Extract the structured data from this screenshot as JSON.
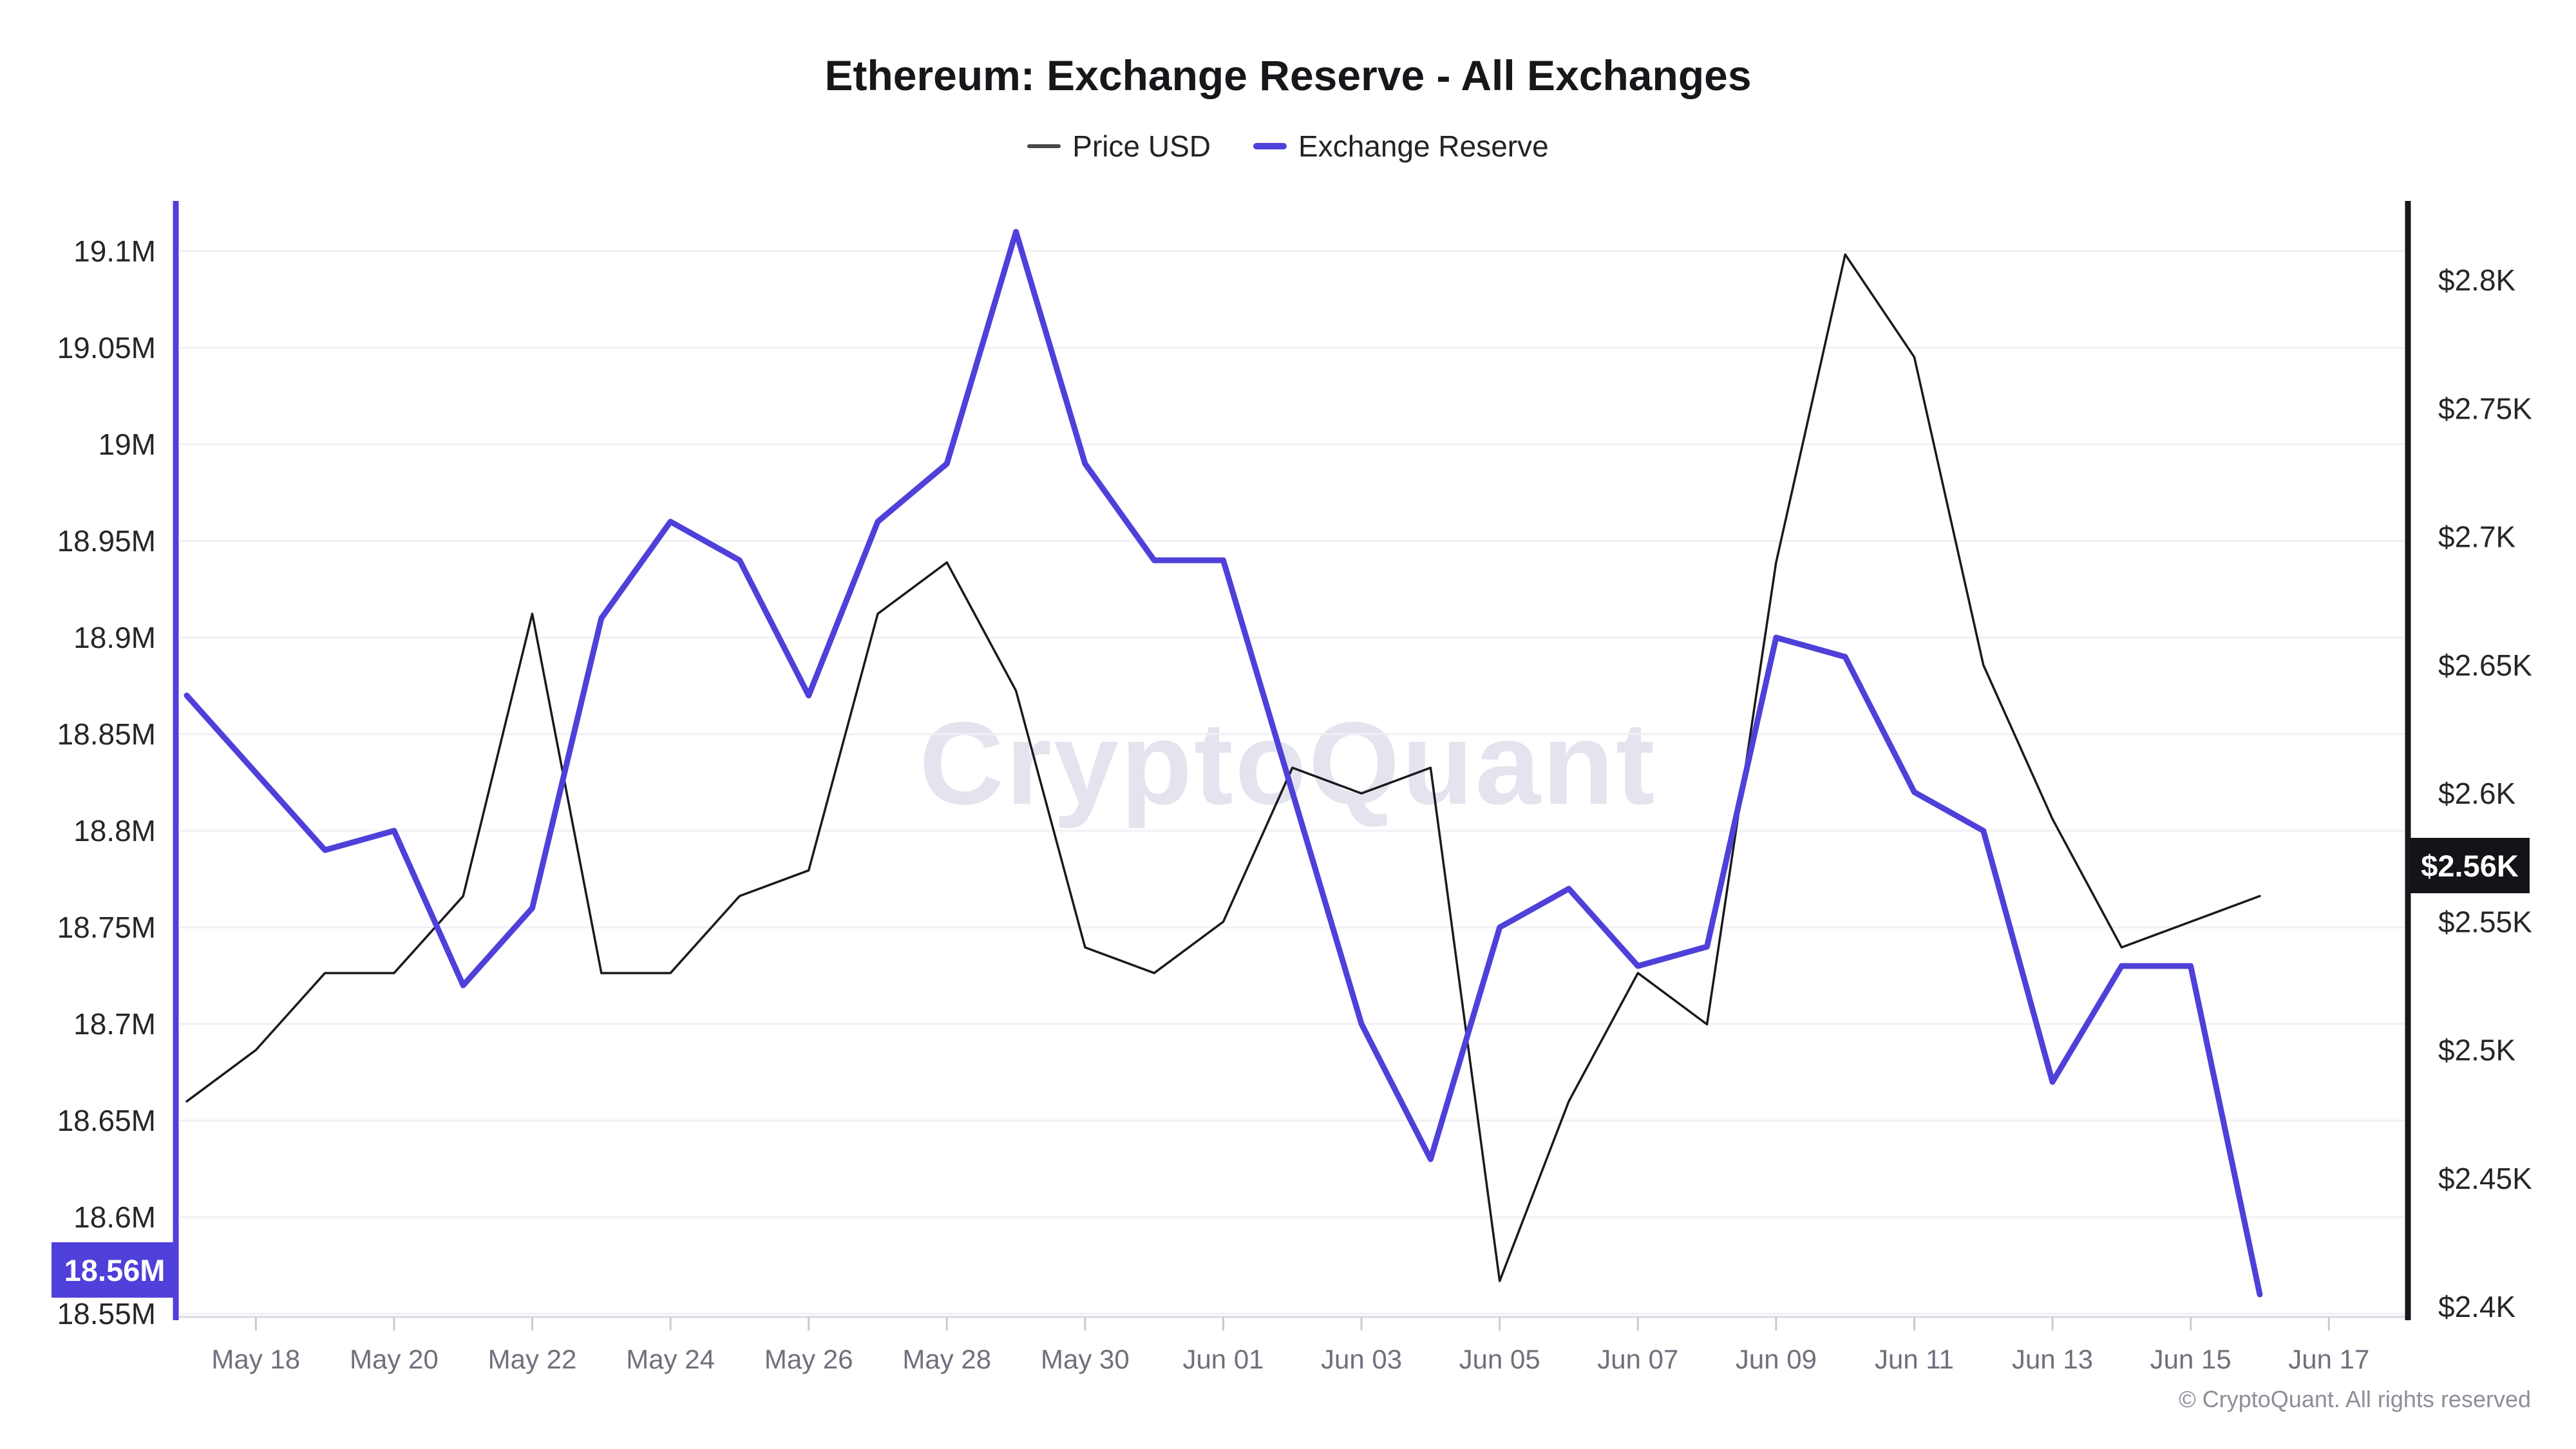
{
  "title": "Ethereum: Exchange Reserve - All Exchanges",
  "legend": {
    "price_label": "Price USD",
    "reserve_label": "Exchange Reserve"
  },
  "watermark": {
    "text": "CryptoQuant",
    "color": "#e3e4ee"
  },
  "footer": "© CryptoQuant. All rights reserved",
  "badges": {
    "reserve": {
      "text": "18.56M",
      "bg": "#4f40d9",
      "fg": "#ffffff"
    },
    "price": {
      "text": "$2.56K",
      "bg": "#141418",
      "fg": "#ffffff"
    }
  },
  "colors": {
    "price_line": "#1a1a1c",
    "reserve_line": "#4f40d9",
    "grid": "#f0f0f5",
    "x_axis_line": "#dadae3",
    "tick_mark": "#c9c9d3",
    "x_label": "#70707c",
    "y_label": "#26262a",
    "left_axis_line": "#4f40d9",
    "right_axis_line": "#17171c"
  },
  "chart_data": {
    "type": "line",
    "title": "Ethereum: Exchange Reserve - All Exchanges",
    "grid": "horizontal-only",
    "legend_position": "top-center",
    "x": [
      "May 17",
      "May 18",
      "May 19",
      "May 20",
      "May 21",
      "May 22",
      "May 23",
      "May 24",
      "May 25",
      "May 26",
      "May 27",
      "May 28",
      "May 29",
      "May 30",
      "May 31",
      "Jun 01",
      "Jun 02",
      "Jun 03",
      "Jun 04",
      "Jun 05",
      "Jun 06",
      "Jun 07",
      "Jun 08",
      "Jun 09",
      "Jun 10",
      "Jun 11",
      "Jun 12",
      "Jun 13",
      "Jun 14",
      "Jun 15",
      "Jun 16"
    ],
    "x_tick_labels": [
      "May 18",
      "May 20",
      "May 22",
      "May 24",
      "May 26",
      "May 28",
      "May 30",
      "Jun 01",
      "Jun 03",
      "Jun 05",
      "Jun 07",
      "Jun 09",
      "Jun 11",
      "Jun 13",
      "Jun 15",
      "Jun 17"
    ],
    "x_tick_day_indices": [
      1,
      3,
      5,
      7,
      9,
      11,
      13,
      15,
      17,
      19,
      21,
      23,
      25,
      27,
      29,
      31
    ],
    "left_axis": {
      "name": "Exchange Reserve",
      "unit": "M ETH",
      "range": [
        18.55,
        19.1
      ],
      "tick_labels": [
        "19.1M",
        "19.05M",
        "19M",
        "18.95M",
        "18.9M",
        "18.85M",
        "18.8M",
        "18.75M",
        "18.7M",
        "18.65M",
        "18.6M",
        "18.55M"
      ],
      "tick_values": [
        19.1,
        19.05,
        19.0,
        18.95,
        18.9,
        18.85,
        18.8,
        18.75,
        18.7,
        18.65,
        18.6,
        18.55
      ]
    },
    "right_axis": {
      "name": "Price USD",
      "unit": "K USD",
      "range": [
        2.4,
        2.8
      ],
      "tick_labels": [
        "$2.8K",
        "$2.75K",
        "$2.7K",
        "$2.65K",
        "$2.6K",
        "$2.55K",
        "$2.5K",
        "$2.45K",
        "$2.4K"
      ],
      "tick_values": [
        2.8,
        2.75,
        2.7,
        2.65,
        2.6,
        2.55,
        2.5,
        2.45,
        2.4
      ]
    },
    "series": [
      {
        "name": "Price USD",
        "axis": "right",
        "unit": "$K",
        "color": "#1a1a1c",
        "values": [
          2.48,
          2.5,
          2.53,
          2.53,
          2.56,
          2.67,
          2.53,
          2.53,
          2.56,
          2.57,
          2.67,
          2.69,
          2.64,
          2.54,
          2.53,
          2.55,
          2.61,
          2.6,
          2.61,
          2.41,
          2.48,
          2.53,
          2.51,
          2.69,
          2.81,
          2.77,
          2.65,
          2.59,
          2.54,
          2.55,
          2.56
        ]
      },
      {
        "name": "Exchange Reserve",
        "axis": "left",
        "unit": "M",
        "color": "#4f40d9",
        "values": [
          18.87,
          18.83,
          18.79,
          18.8,
          18.72,
          18.76,
          18.91,
          18.96,
          18.94,
          18.87,
          18.96,
          18.99,
          19.11,
          18.99,
          18.94,
          18.94,
          18.82,
          18.7,
          18.63,
          18.75,
          18.77,
          18.73,
          18.74,
          18.9,
          18.89,
          18.82,
          18.8,
          18.67,
          18.73,
          18.73,
          18.56
        ]
      }
    ],
    "last_values": {
      "exchange_reserve": "18.56M",
      "price_usd": "$2.56K"
    }
  }
}
